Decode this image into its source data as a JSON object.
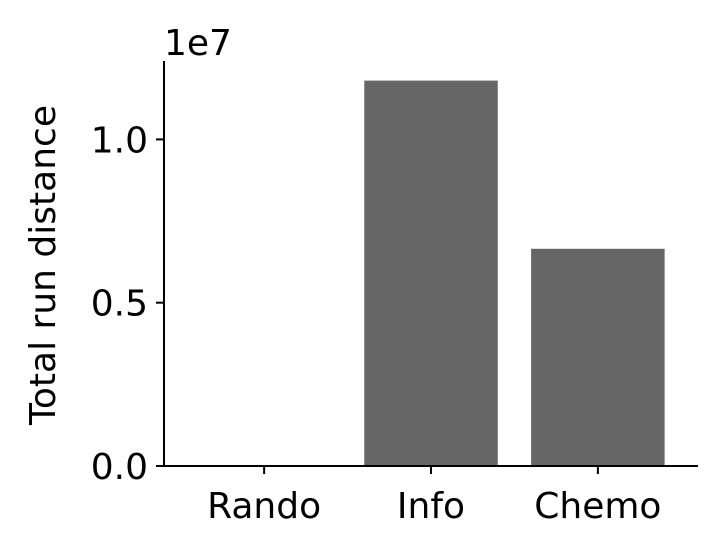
{
  "chart_data": {
    "type": "bar",
    "categories": [
      "Rando",
      "Info",
      "Chemo"
    ],
    "values": [
      25000,
      11800000,
      6650000
    ],
    "title": "",
    "xlabel": "",
    "ylabel": "Total run distance",
    "ylim": [
      0,
      12400000
    ],
    "yticks": [
      0,
      5000000,
      10000000
    ],
    "ytick_labels": [
      "0.0",
      "0.5",
      "1.0"
    ],
    "y_offset_label": "1e7",
    "bar_color": "#666666",
    "grid": false,
    "legend": "none"
  }
}
